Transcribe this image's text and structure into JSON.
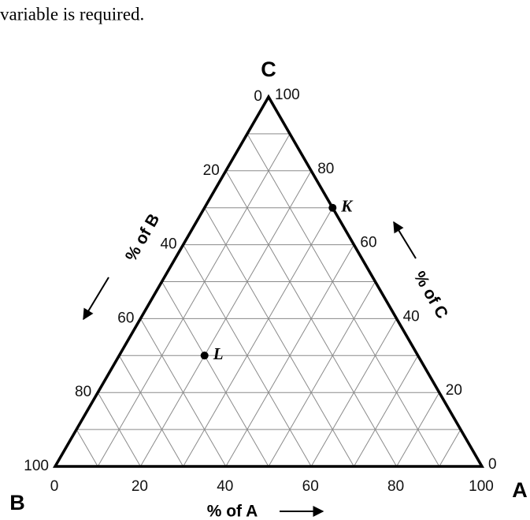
{
  "text_above": "variable is required.",
  "chart_data": {
    "type": "ternary",
    "corner_labels": {
      "a": "A",
      "b": "B",
      "c": "C"
    },
    "axis_labels": {
      "a": "% of A",
      "b": "% of B",
      "c": "% of C"
    },
    "a_ticks": [
      0,
      20,
      40,
      60,
      80,
      100
    ],
    "b_ticks": [
      0,
      20,
      40,
      60,
      80,
      100
    ],
    "c_ticks": [
      0,
      20,
      40,
      60,
      80,
      100
    ],
    "gridlines": [
      10,
      20,
      30,
      40,
      50,
      60,
      70,
      80,
      90
    ],
    "grid_color": "#8a8a8a",
    "points": [
      {
        "name": "K",
        "a": 30,
        "b": 0,
        "c": 70
      },
      {
        "name": "L",
        "a": 20,
        "b": 50,
        "c": 30
      }
    ]
  }
}
